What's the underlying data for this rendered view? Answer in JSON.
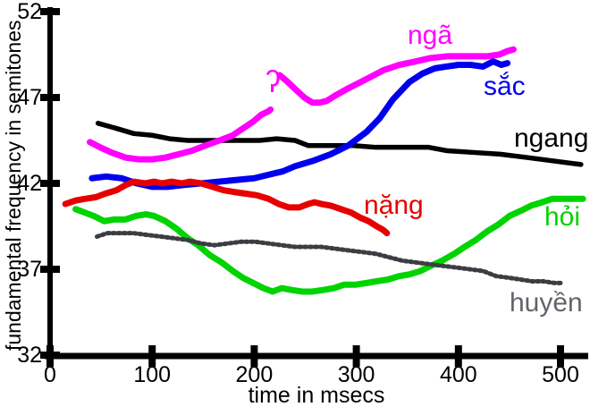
{
  "figure": {
    "y_axis_title": "fundamental frequency in semitones",
    "x_axis_title": "time in msecs"
  },
  "curve_labels": {
    "nga": {
      "text": "ngã",
      "color": "#ff00ff"
    },
    "glottal": {
      "text": "ʔ",
      "color": "#ff00ff"
    },
    "sac": {
      "text": "sắc",
      "color": "#0000ee"
    },
    "ngang": {
      "text": "ngang",
      "color": "#000000"
    },
    "nang": {
      "text": "nặng",
      "color": "#e60000"
    },
    "hoi": {
      "text": "hỏi",
      "color": "#00d400"
    },
    "huyen": {
      "text": "huyền",
      "color": "#63636b"
    }
  },
  "chart_data": {
    "type": "line",
    "title": "",
    "xlabel": "time in msecs",
    "ylabel": "fundamental frequency in semitones",
    "xlim": [
      0,
      530
    ],
    "ylim": [
      32,
      52
    ],
    "grid": false,
    "legend_position": "inline-curve-labels",
    "x_ticks": [
      {
        "t": 0,
        "label": "0"
      },
      {
        "t": 100,
        "label": "100"
      },
      {
        "t": 200,
        "label": "200"
      },
      {
        "t": 300,
        "label": "300"
      },
      {
        "t": 400,
        "label": "400"
      },
      {
        "t": 500,
        "label": "500"
      }
    ],
    "y_ticks": [
      {
        "v": 52,
        "label": "52"
      },
      {
        "v": 47,
        "label": "47"
      },
      {
        "v": 42,
        "label": "42"
      },
      {
        "v": 37,
        "label": "37"
      },
      {
        "v": 32,
        "label": "32"
      }
    ],
    "annotations": [
      {
        "text": "ʔ",
        "meaning": "glottal stop on ngã contour",
        "t": 216,
        "v": 47.6,
        "color": "#ff00ff"
      }
    ],
    "series": [
      {
        "name": "ngang",
        "color": "#000000",
        "width": 5.5,
        "dash": null,
        "segments": [
          [
            [
              47,
              45.5
            ],
            [
              65,
              45.2
            ],
            [
              82,
              44.9
            ],
            [
              100,
              44.8
            ],
            [
              117,
              44.6
            ],
            [
              135,
              44.5
            ],
            [
              152,
              44.5
            ],
            [
              170,
              44.5
            ],
            [
              187,
              44.5
            ],
            [
              205,
              44.5
            ],
            [
              222,
              44.6
            ],
            [
              240,
              44.5
            ],
            [
              253,
              44.2
            ],
            [
              275,
              44.2
            ],
            [
              297,
              44.2
            ],
            [
              319,
              44.1
            ],
            [
              345,
              44.1
            ],
            [
              371,
              44.1
            ],
            [
              389,
              43.9
            ],
            [
              415,
              43.8
            ],
            [
              441,
              43.7
            ],
            [
              468,
              43.5
            ],
            [
              494,
              43.3
            ],
            [
              520,
              43.1
            ]
          ]
        ]
      },
      {
        "name": "ngã",
        "color": "#ff00ff",
        "width": 7,
        "dash": null,
        "segments": [
          [
            [
              39,
              44.4
            ],
            [
              49,
              44.1
            ],
            [
              60,
              43.8
            ],
            [
              74,
              43.5
            ],
            [
              87,
              43.4
            ],
            [
              100,
              43.4
            ],
            [
              113,
              43.5
            ],
            [
              126,
              43.7
            ],
            [
              139,
              43.9
            ],
            [
              152,
              44.2
            ],
            [
              166,
              44.5
            ],
            [
              179,
              44.8
            ],
            [
              189,
              45.2
            ],
            [
              199,
              45.6
            ],
            [
              207,
              46.0
            ],
            [
              214,
              46.2
            ],
            [
              216,
              46.3
            ]
          ],
          [
            [
              225,
              48.3
            ],
            [
              231,
              48.0
            ],
            [
              240,
              47.5
            ],
            [
              249,
              47.0
            ],
            [
              257,
              46.7
            ],
            [
              264,
              46.7
            ],
            [
              271,
              46.8
            ],
            [
              279,
              47.1
            ],
            [
              291,
              47.5
            ],
            [
              301,
              47.8
            ],
            [
              314,
              48.2
            ],
            [
              327,
              48.6
            ],
            [
              342,
              48.9
            ],
            [
              358,
              49.1
            ],
            [
              373,
              49.3
            ],
            [
              389,
              49.4
            ],
            [
              402,
              49.4
            ],
            [
              415,
              49.4
            ],
            [
              428,
              49.4
            ],
            [
              440,
              49.5
            ],
            [
              448,
              49.7
            ],
            [
              454,
              49.8
            ]
          ]
        ]
      },
      {
        "name": "sắc",
        "color": "#0000ee",
        "width": 7,
        "dash": null,
        "segments": [
          [
            [
              41,
              42.3
            ],
            [
              55,
              42.4
            ],
            [
              70,
              42.3
            ],
            [
              85,
              42.0
            ],
            [
              100,
              41.8
            ],
            [
              115,
              41.8
            ],
            [
              130,
              41.9
            ],
            [
              148,
              42.0
            ],
            [
              165,
              42.1
            ],
            [
              183,
              42.2
            ],
            [
              200,
              42.3
            ],
            [
              214,
              42.5
            ],
            [
              228,
              42.7
            ],
            [
              240,
              43.0
            ],
            [
              257,
              43.3
            ],
            [
              275,
              43.7
            ],
            [
              292,
              44.2
            ],
            [
              310,
              45.0
            ],
            [
              323,
              45.8
            ],
            [
              336,
              46.9
            ],
            [
              352,
              47.9
            ],
            [
              365,
              48.4
            ],
            [
              377,
              48.7
            ],
            [
              388,
              48.8
            ],
            [
              400,
              48.9
            ],
            [
              412,
              48.9
            ],
            [
              424,
              48.8
            ],
            [
              434,
              49.1
            ],
            [
              442,
              48.9
            ],
            [
              448,
              49.0
            ]
          ]
        ]
      },
      {
        "name": "nặng",
        "color": "#e60000",
        "width": 7,
        "dash": null,
        "segments": [
          [
            [
              15,
              40.8
            ],
            [
              25,
              41.0
            ],
            [
              34,
              41.1
            ],
            [
              45,
              41.2
            ],
            [
              54,
              41.4
            ],
            [
              65,
              41.6
            ],
            [
              74,
              41.9
            ],
            [
              82,
              42.1
            ],
            [
              93,
              42.0
            ],
            [
              102,
              42.1
            ],
            [
              110,
              42.0
            ],
            [
              119,
              42.1
            ],
            [
              129,
              42.0
            ],
            [
              137,
              42.1
            ],
            [
              148,
              42.0
            ],
            [
              159,
              41.8
            ],
            [
              170,
              41.6
            ],
            [
              180,
              41.5
            ],
            [
              192,
              41.4
            ],
            [
              203,
              41.3
            ],
            [
              214,
              41.1
            ],
            [
              224,
              40.8
            ],
            [
              234,
              40.6
            ],
            [
              244,
              40.6
            ],
            [
              253,
              40.8
            ],
            [
              259,
              40.9
            ],
            [
              266,
              40.8
            ],
            [
              275,
              40.7
            ],
            [
              285,
              40.5
            ],
            [
              295,
              40.3
            ],
            [
              304,
              40.0
            ],
            [
              312,
              39.8
            ],
            [
              320,
              39.5
            ],
            [
              326,
              39.3
            ],
            [
              330,
              39.1
            ]
          ]
        ]
      },
      {
        "name": "hỏi",
        "color": "#00d400",
        "width": 7,
        "dash": null,
        "segments": [
          [
            [
              25,
              40.5
            ],
            [
              34,
              40.3
            ],
            [
              43,
              40.1
            ],
            [
              53,
              39.8
            ],
            [
              63,
              39.9
            ],
            [
              74,
              39.9
            ],
            [
              84,
              40.1
            ],
            [
              94,
              40.2
            ],
            [
              102,
              40.1
            ],
            [
              113,
              39.8
            ],
            [
              123,
              39.4
            ],
            [
              135,
              38.8
            ],
            [
              145,
              38.4
            ],
            [
              157,
              37.8
            ],
            [
              168,
              37.4
            ],
            [
              179,
              36.9
            ],
            [
              189,
              36.5
            ],
            [
              199,
              36.2
            ],
            [
              209,
              35.9
            ],
            [
              218,
              35.7
            ],
            [
              227,
              35.9
            ],
            [
              236,
              35.8
            ],
            [
              247,
              35.7
            ],
            [
              257,
              35.7
            ],
            [
              268,
              35.8
            ],
            [
              278,
              35.9
            ],
            [
              288,
              36.1
            ],
            [
              299,
              36.1
            ],
            [
              310,
              36.2
            ],
            [
              320,
              36.3
            ],
            [
              331,
              36.4
            ],
            [
              342,
              36.6
            ],
            [
              352,
              36.7
            ],
            [
              363,
              36.9
            ],
            [
              373,
              37.2
            ],
            [
              384,
              37.5
            ],
            [
              396,
              37.9
            ],
            [
              406,
              38.3
            ],
            [
              417,
              38.7
            ],
            [
              428,
              39.2
            ],
            [
              439,
              39.6
            ],
            [
              450,
              40.1
            ],
            [
              461,
              40.4
            ],
            [
              471,
              40.7
            ],
            [
              482,
              40.9
            ],
            [
              492,
              41.1
            ],
            [
              503,
              41.1
            ],
            [
              513,
              41.1
            ],
            [
              522,
              41.1
            ]
          ]
        ]
      },
      {
        "name": "huyền",
        "color": "#3c3c42",
        "width": 5,
        "dash": [
          2.6,
          3.4
        ],
        "segments": [
          [
            [
              46,
              38.9
            ],
            [
              56,
              39.1
            ],
            [
              69,
              39.1
            ],
            [
              82,
              39.1
            ],
            [
              95,
              39.0
            ],
            [
              109,
              38.9
            ],
            [
              122,
              38.8
            ],
            [
              135,
              38.7
            ],
            [
              148,
              38.5
            ],
            [
              161,
              38.4
            ],
            [
              174,
              38.5
            ],
            [
              187,
              38.6
            ],
            [
              201,
              38.6
            ],
            [
              214,
              38.5
            ],
            [
              227,
              38.4
            ],
            [
              240,
              38.3
            ],
            [
              253,
              38.3
            ],
            [
              266,
              38.3
            ],
            [
              279,
              38.2
            ],
            [
              292,
              38.1
            ],
            [
              306,
              38.0
            ],
            [
              319,
              37.9
            ],
            [
              332,
              37.7
            ],
            [
              345,
              37.5
            ],
            [
              358,
              37.4
            ],
            [
              371,
              37.3
            ],
            [
              384,
              37.2
            ],
            [
              398,
              37.1
            ],
            [
              411,
              37.0
            ],
            [
              424,
              36.9
            ],
            [
              437,
              36.6
            ],
            [
              450,
              36.5
            ],
            [
              461,
              36.4
            ],
            [
              472,
              36.3
            ],
            [
              483,
              36.3
            ],
            [
              494,
              36.2
            ],
            [
              500,
              36.2
            ]
          ]
        ]
      }
    ]
  }
}
